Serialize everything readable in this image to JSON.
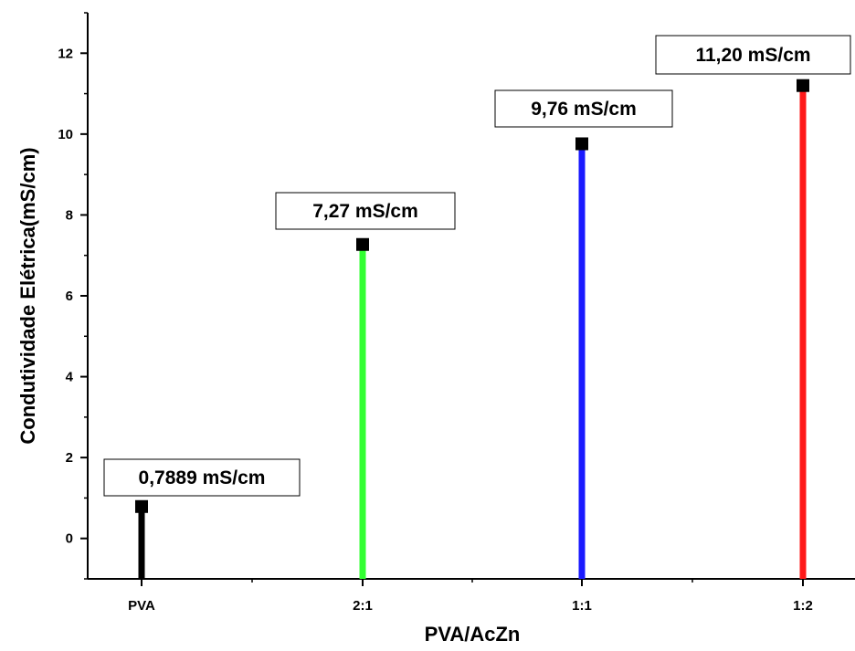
{
  "chart_data": {
    "type": "bar",
    "categories": [
      "PVA",
      "2:1",
      "1:1",
      "1:2"
    ],
    "values": [
      0.7889,
      7.27,
      9.76,
      11.2
    ],
    "data_labels": [
      "0,7889 mS/cm",
      "7,27 mS/cm",
      "9,76 mS/cm",
      "11,20 mS/cm"
    ],
    "colors": [
      "#000000",
      "#33ff33",
      "#1a1aff",
      "#ff1a1a"
    ],
    "xlabel": "PVA/AcZn",
    "ylabel": "Condutividade Elétrica(mS/cm)",
    "ylim": [
      -1,
      13
    ],
    "yticks": [
      "0",
      "2",
      "4",
      "6",
      "8",
      "10",
      "12"
    ],
    "legend": "none",
    "grid": false
  }
}
